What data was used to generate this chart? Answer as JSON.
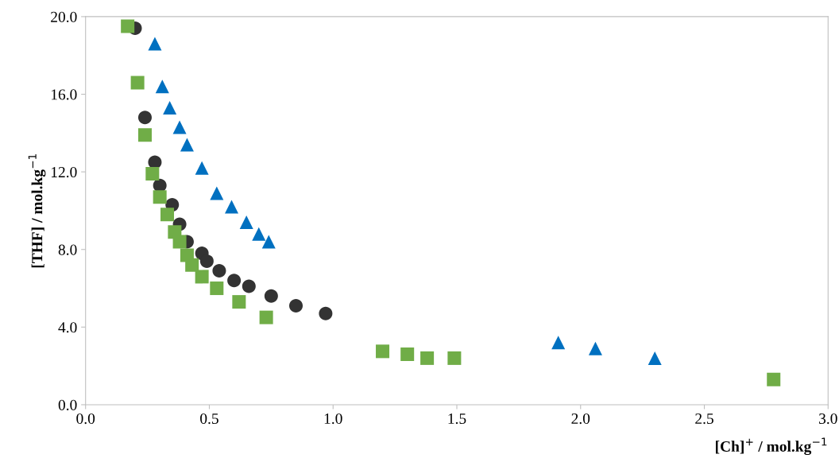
{
  "chart_data": {
    "type": "scatter",
    "xlabel": "[Ch]$^{+}$ / mol.kg$^{−1}$",
    "ylabel": "[THF] / mol.kg$^{−1}$",
    "xlim": [
      0,
      3
    ],
    "ylim": [
      0,
      20
    ],
    "xticks": [
      {
        "value": 0,
        "label": "0.0"
      },
      {
        "value": 0.5,
        "label": "0.5"
      },
      {
        "value": 1,
        "label": "1.0"
      },
      {
        "value": 1.5,
        "label": "1.5"
      },
      {
        "value": 2,
        "label": "2.0"
      },
      {
        "value": 2.5,
        "label": "2.5"
      },
      {
        "value": 3,
        "label": "3.0"
      }
    ],
    "yticks": [
      {
        "value": 0,
        "label": "0.0"
      },
      {
        "value": 4,
        "label": "4.0"
      },
      {
        "value": 8,
        "label": "8.0"
      },
      {
        "value": 12,
        "label": "12.0"
      },
      {
        "value": 16,
        "label": "16.0"
      },
      {
        "value": 20,
        "label": "20.0"
      }
    ],
    "series": [
      {
        "color": "#333333",
        "marker": "circle",
        "x": [
          0.2,
          0.24,
          0.28,
          0.3,
          0.35,
          0.38,
          0.41,
          0.47,
          0.49,
          0.54,
          0.6,
          0.66,
          0.75,
          0.85,
          0.97
        ],
        "values": [
          19.4,
          14.8,
          12.5,
          11.3,
          10.3,
          9.3,
          8.4,
          7.8,
          7.4,
          6.9,
          6.4,
          6.1,
          5.6,
          5.1,
          4.7
        ]
      },
      {
        "color": "#70ad47",
        "marker": "square",
        "x": [
          0.17,
          0.21,
          0.24,
          0.27,
          0.3,
          0.33,
          0.36,
          0.38,
          0.41,
          0.43,
          0.47,
          0.53,
          0.62,
          0.73,
          1.2,
          1.3,
          1.38,
          1.49,
          2.78
        ],
        "values": [
          19.5,
          16.6,
          13.9,
          11.9,
          10.7,
          9.8,
          8.9,
          8.4,
          7.7,
          7.2,
          6.6,
          6.0,
          5.3,
          4.5,
          2.75,
          2.6,
          2.4,
          2.4,
          1.3
        ]
      },
      {
        "color": "#0070c0",
        "marker": "triangle",
        "x": [
          0.28,
          0.31,
          0.34,
          0.38,
          0.41,
          0.47,
          0.53,
          0.59,
          0.65,
          0.7,
          0.74,
          1.91,
          2.06,
          2.3
        ],
        "values": [
          18.6,
          16.4,
          15.3,
          14.3,
          13.4,
          12.2,
          10.9,
          10.2,
          9.4,
          8.8,
          8.4,
          3.2,
          2.9,
          2.4
        ]
      }
    ]
  }
}
